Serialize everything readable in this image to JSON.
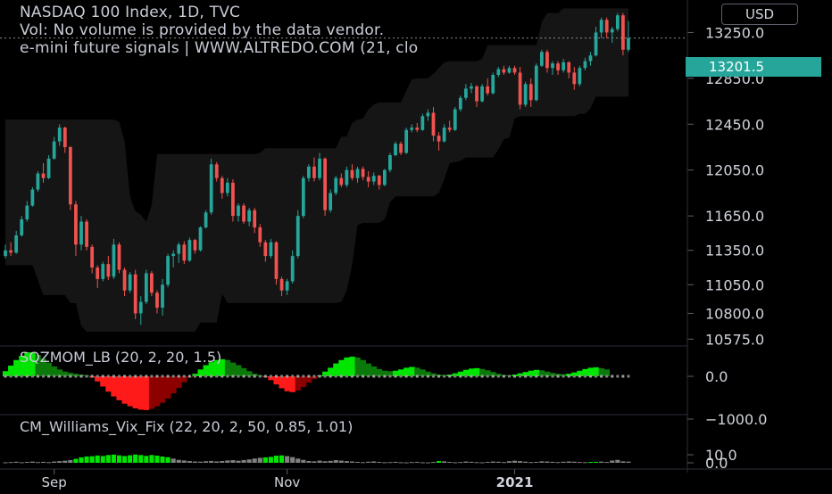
{
  "header": {
    "title": "NASDAQ 100 Index, 1D, TVC",
    "volume_note": "Vol: No volume is provided by the data vendor.",
    "signals_note": "e-mini future signals | WWW.ALTREDO.COM (21, clo"
  },
  "currency": "USD",
  "last_price": "13201.5",
  "indicators": {
    "sqzmom": "SQZMOM_LB (20, 2, 20, 1.5)",
    "vix": "CM_Williams_Vix_Fix (22, 20, 2, 50, 0.85, 1.01)"
  },
  "colors": {
    "up": "#26a69a",
    "down": "#ef5350",
    "bright_green": "#00e600",
    "dark_green": "#0b7a0b",
    "red": "#ff1a1a",
    "dark_red": "#8c0000",
    "gray": "#808080",
    "band": "#151515"
  },
  "chart_data": [
    {
      "type": "candlestick",
      "title": "NASDAQ 100 Index, 1D, TVC",
      "price_ticks": [
        "13250.0",
        "12850.0",
        "12450.0",
        "12050.0",
        "11650.0",
        "11350.0",
        "11050.0",
        "10800.0",
        "10575.0"
      ],
      "price_tick_values": [
        13250,
        12850,
        12450,
        12050,
        11650,
        11350,
        11050,
        10800,
        10575
      ],
      "x_ticks": [
        "Sep",
        "Nov",
        "2021"
      ],
      "x_tick_indices": [
        9,
        52,
        94
      ],
      "last_price": 13201.5,
      "candles": [
        {
          "o": 11300,
          "h": 11400,
          "l": 11280,
          "c": 11350
        },
        {
          "o": 11350,
          "h": 11420,
          "l": 11300,
          "c": 11330
        },
        {
          "o": 11330,
          "h": 11520,
          "l": 11320,
          "c": 11480
        },
        {
          "o": 11480,
          "h": 11650,
          "l": 11470,
          "c": 11620
        },
        {
          "o": 11620,
          "h": 11780,
          "l": 11600,
          "c": 11740
        },
        {
          "o": 11740,
          "h": 11900,
          "l": 11730,
          "c": 11880
        },
        {
          "o": 11880,
          "h": 12040,
          "l": 11860,
          "c": 12020
        },
        {
          "o": 12020,
          "h": 12110,
          "l": 11940,
          "c": 11980
        },
        {
          "o": 11980,
          "h": 12180,
          "l": 11970,
          "c": 12150
        },
        {
          "o": 12150,
          "h": 12340,
          "l": 12140,
          "c": 12300
        },
        {
          "o": 12300,
          "h": 12450,
          "l": 12260,
          "c": 12420
        },
        {
          "o": 12420,
          "h": 12430,
          "l": 12200,
          "c": 12250
        },
        {
          "o": 12250,
          "h": 12260,
          "l": 11700,
          "c": 11750
        },
        {
          "o": 11750,
          "h": 11780,
          "l": 11300,
          "c": 11400
        },
        {
          "o": 11400,
          "h": 11650,
          "l": 11350,
          "c": 11600
        },
        {
          "o": 11600,
          "h": 11620,
          "l": 11350,
          "c": 11380
        },
        {
          "o": 11380,
          "h": 11400,
          "l": 11150,
          "c": 11200
        },
        {
          "o": 11200,
          "h": 11220,
          "l": 11020,
          "c": 11100
        },
        {
          "o": 11100,
          "h": 11250,
          "l": 11080,
          "c": 11230
        },
        {
          "o": 11230,
          "h": 11300,
          "l": 11090,
          "c": 11120
        },
        {
          "o": 11120,
          "h": 11450,
          "l": 11100,
          "c": 11400
        },
        {
          "o": 11400,
          "h": 11420,
          "l": 11150,
          "c": 11180
        },
        {
          "o": 11180,
          "h": 11200,
          "l": 10950,
          "c": 11000
        },
        {
          "o": 11000,
          "h": 11160,
          "l": 10980,
          "c": 11140
        },
        {
          "o": 11140,
          "h": 11180,
          "l": 10750,
          "c": 10800
        },
        {
          "o": 10800,
          "h": 10950,
          "l": 10700,
          "c": 10900
        },
        {
          "o": 10900,
          "h": 11180,
          "l": 10880,
          "c": 11150
        },
        {
          "o": 11150,
          "h": 11170,
          "l": 10950,
          "c": 10980
        },
        {
          "o": 10980,
          "h": 11000,
          "l": 10800,
          "c": 10850
        },
        {
          "o": 10850,
          "h": 11100,
          "l": 10780,
          "c": 11050
        },
        {
          "o": 11050,
          "h": 11320,
          "l": 11030,
          "c": 11300
        },
        {
          "o": 11300,
          "h": 11350,
          "l": 11200,
          "c": 11320
        },
        {
          "o": 11320,
          "h": 11420,
          "l": 11240,
          "c": 11400
        },
        {
          "o": 11400,
          "h": 11430,
          "l": 11230,
          "c": 11260
        },
        {
          "o": 11260,
          "h": 11460,
          "l": 11250,
          "c": 11440
        },
        {
          "o": 11440,
          "h": 11450,
          "l": 11320,
          "c": 11350
        },
        {
          "o": 11350,
          "h": 11560,
          "l": 11340,
          "c": 11550
        },
        {
          "o": 11550,
          "h": 11700,
          "l": 11540,
          "c": 11680
        },
        {
          "o": 11680,
          "h": 12150,
          "l": 11660,
          "c": 12100
        },
        {
          "o": 12100,
          "h": 12120,
          "l": 11950,
          "c": 11980
        },
        {
          "o": 11980,
          "h": 12000,
          "l": 11800,
          "c": 11850
        },
        {
          "o": 11850,
          "h": 11980,
          "l": 11820,
          "c": 11940
        },
        {
          "o": 11940,
          "h": 11970,
          "l": 11600,
          "c": 11650
        },
        {
          "o": 11650,
          "h": 11760,
          "l": 11600,
          "c": 11740
        },
        {
          "o": 11740,
          "h": 11760,
          "l": 11580,
          "c": 11600
        },
        {
          "o": 11600,
          "h": 11720,
          "l": 11560,
          "c": 11700
        },
        {
          "o": 11700,
          "h": 11720,
          "l": 11500,
          "c": 11550
        },
        {
          "o": 11550,
          "h": 11580,
          "l": 11380,
          "c": 11420
        },
        {
          "o": 11420,
          "h": 11440,
          "l": 11250,
          "c": 11300
        },
        {
          "o": 11300,
          "h": 11450,
          "l": 11280,
          "c": 11420
        },
        {
          "o": 11420,
          "h": 11430,
          "l": 11050,
          "c": 11100
        },
        {
          "o": 11100,
          "h": 11120,
          "l": 10950,
          "c": 11000
        },
        {
          "o": 11000,
          "h": 11100,
          "l": 10960,
          "c": 11080
        },
        {
          "o": 11080,
          "h": 11350,
          "l": 11060,
          "c": 11300
        },
        {
          "o": 11300,
          "h": 11700,
          "l": 11280,
          "c": 11650
        },
        {
          "o": 11650,
          "h": 12000,
          "l": 11630,
          "c": 11980
        },
        {
          "o": 11980,
          "h": 12100,
          "l": 11950,
          "c": 12080
        },
        {
          "o": 12080,
          "h": 12160,
          "l": 11950,
          "c": 11980
        },
        {
          "o": 11980,
          "h": 12200,
          "l": 11960,
          "c": 12150
        },
        {
          "o": 12150,
          "h": 12160,
          "l": 11650,
          "c": 11700
        },
        {
          "o": 11700,
          "h": 11880,
          "l": 11680,
          "c": 11850
        },
        {
          "o": 11850,
          "h": 12000,
          "l": 11830,
          "c": 11980
        },
        {
          "o": 11980,
          "h": 12020,
          "l": 11900,
          "c": 11920
        },
        {
          "o": 11920,
          "h": 12080,
          "l": 11900,
          "c": 12050
        },
        {
          "o": 12050,
          "h": 12100,
          "l": 11960,
          "c": 11980
        },
        {
          "o": 11980,
          "h": 12080,
          "l": 11940,
          "c": 12060
        },
        {
          "o": 12060,
          "h": 12080,
          "l": 11960,
          "c": 11990
        },
        {
          "o": 11990,
          "h": 12040,
          "l": 11900,
          "c": 11950
        },
        {
          "o": 11950,
          "h": 12030,
          "l": 11920,
          "c": 12000
        },
        {
          "o": 12000,
          "h": 12010,
          "l": 11880,
          "c": 11920
        },
        {
          "o": 11920,
          "h": 12060,
          "l": 11910,
          "c": 12050
        },
        {
          "o": 12050,
          "h": 12200,
          "l": 12030,
          "c": 12180
        },
        {
          "o": 12180,
          "h": 12300,
          "l": 12170,
          "c": 12280
        },
        {
          "o": 12280,
          "h": 12300,
          "l": 12180,
          "c": 12200
        },
        {
          "o": 12200,
          "h": 12420,
          "l": 12190,
          "c": 12400
        },
        {
          "o": 12400,
          "h": 12450,
          "l": 12380,
          "c": 12420
        },
        {
          "o": 12420,
          "h": 12460,
          "l": 12380,
          "c": 12400
        },
        {
          "o": 12400,
          "h": 12540,
          "l": 12390,
          "c": 12520
        },
        {
          "o": 12520,
          "h": 12580,
          "l": 12480,
          "c": 12550
        },
        {
          "o": 12550,
          "h": 12600,
          "l": 12300,
          "c": 12350
        },
        {
          "o": 12350,
          "h": 12380,
          "l": 12220,
          "c": 12300
        },
        {
          "o": 12300,
          "h": 12450,
          "l": 12290,
          "c": 12420
        },
        {
          "o": 12420,
          "h": 12480,
          "l": 12380,
          "c": 12400
        },
        {
          "o": 12400,
          "h": 12600,
          "l": 12390,
          "c": 12580
        },
        {
          "o": 12580,
          "h": 12700,
          "l": 12560,
          "c": 12680
        },
        {
          "o": 12680,
          "h": 12800,
          "l": 12660,
          "c": 12760
        },
        {
          "o": 12760,
          "h": 12810,
          "l": 12720,
          "c": 12780
        },
        {
          "o": 12780,
          "h": 12790,
          "l": 12600,
          "c": 12650
        },
        {
          "o": 12650,
          "h": 12800,
          "l": 12640,
          "c": 12780
        },
        {
          "o": 12780,
          "h": 12850,
          "l": 12700,
          "c": 12720
        },
        {
          "o": 12720,
          "h": 12900,
          "l": 12710,
          "c": 12880
        },
        {
          "o": 12880,
          "h": 12950,
          "l": 12860,
          "c": 12930
        },
        {
          "o": 12930,
          "h": 12960,
          "l": 12880,
          "c": 12900
        },
        {
          "o": 12900,
          "h": 12960,
          "l": 12890,
          "c": 12940
        },
        {
          "o": 12940,
          "h": 12960,
          "l": 12880,
          "c": 12900
        },
        {
          "o": 12900,
          "h": 12950,
          "l": 12580,
          "c": 12620
        },
        {
          "o": 12620,
          "h": 12820,
          "l": 12600,
          "c": 12800
        },
        {
          "o": 12800,
          "h": 12850,
          "l": 12600,
          "c": 12660
        },
        {
          "o": 12660,
          "h": 12980,
          "l": 12650,
          "c": 12960
        },
        {
          "o": 12960,
          "h": 13100,
          "l": 12950,
          "c": 13080
        },
        {
          "o": 13080,
          "h": 13100,
          "l": 12900,
          "c": 12940
        },
        {
          "o": 12940,
          "h": 13000,
          "l": 12880,
          "c": 12980
        },
        {
          "o": 12980,
          "h": 13000,
          "l": 12880,
          "c": 12920
        },
        {
          "o": 12920,
          "h": 13020,
          "l": 12900,
          "c": 12990
        },
        {
          "o": 12990,
          "h": 13000,
          "l": 12850,
          "c": 12900
        },
        {
          "o": 12900,
          "h": 12950,
          "l": 12750,
          "c": 12800
        },
        {
          "o": 12800,
          "h": 12960,
          "l": 12780,
          "c": 12940
        },
        {
          "o": 12940,
          "h": 13030,
          "l": 12920,
          "c": 13000
        },
        {
          "o": 13000,
          "h": 13080,
          "l": 12960,
          "c": 13050
        },
        {
          "o": 13050,
          "h": 13300,
          "l": 13040,
          "c": 13250
        },
        {
          "o": 13250,
          "h": 13380,
          "l": 13200,
          "c": 13360
        },
        {
          "o": 13360,
          "h": 13380,
          "l": 13200,
          "c": 13250
        },
        {
          "o": 13250,
          "h": 13300,
          "l": 13160,
          "c": 13280
        },
        {
          "o": 13280,
          "h": 13420,
          "l": 13260,
          "c": 13400
        },
        {
          "o": 13400,
          "h": 13420,
          "l": 13050,
          "c": 13100
        },
        {
          "o": 13100,
          "h": 13350,
          "l": 13080,
          "c": 13201.5
        }
      ]
    },
    {
      "type": "bar",
      "title": "SQZMOM_LB (20, 2, 20, 1.5)",
      "y_ticks": [
        "0.0",
        "−1000.0"
      ],
      "y_tick_values": [
        0,
        -1000
      ],
      "values": [
        120,
        250,
        380,
        480,
        560,
        560,
        500,
        410,
        320,
        230,
        160,
        110,
        80,
        60,
        40,
        20,
        -30,
        -120,
        -240,
        -360,
        -470,
        -560,
        -640,
        -700,
        -750,
        -780,
        -790,
        -760,
        -700,
        -620,
        -520,
        -400,
        -270,
        -140,
        -30,
        60,
        160,
        260,
        330,
        380,
        400,
        380,
        320,
        260,
        190,
        120,
        60,
        20,
        -20,
        -90,
        -190,
        -280,
        -350,
        -370,
        -330,
        -250,
        -150,
        -60,
        20,
        110,
        200,
        300,
        380,
        440,
        460,
        440,
        380,
        300,
        230,
        170,
        130,
        120,
        130,
        160,
        200,
        220,
        200,
        160,
        110,
        70,
        40,
        30,
        40,
        70,
        110,
        150,
        180,
        190,
        170,
        140,
        100,
        60,
        30,
        20,
        40,
        70,
        100,
        130,
        150,
        140,
        110,
        80,
        60,
        50,
        60,
        90,
        130,
        170,
        200,
        210,
        190,
        160
      ]
    },
    {
      "type": "bar",
      "title": "CM_Williams_Vix_Fix (22, 20, 2, 50, 0.85, 1.01)",
      "y_ticks": [
        "10.0",
        "0.0"
      ],
      "y_tick_values": [
        10,
        0
      ],
      "values": [
        0.6,
        0.9,
        1.3,
        0.7,
        1.1,
        1.5,
        0.9,
        1.2,
        0.8,
        1.6,
        2.1,
        2.6,
        3.4,
        4.9,
        6.8,
        7.9,
        8.2,
        9.1,
        8.4,
        9.7,
        10.2,
        9.3,
        8.4,
        9.4,
        10.3,
        9.6,
        8.6,
        9.7,
        8.9,
        7.8,
        6.9,
        5.2,
        3.6,
        2.9,
        2.2,
        1.6,
        1.4,
        1.9,
        2.3,
        1.7,
        2.2,
        2.9,
        3.3,
        2.6,
        3.4,
        4.2,
        5.3,
        6.2,
        6.8,
        7.4,
        8.9,
        9.2,
        8.4,
        7.1,
        5.2,
        3.6,
        2.2,
        1.8,
        2.7,
        1.9,
        2.4,
        3.3,
        2.7,
        2.1,
        1.6,
        1.1,
        0.8,
        1.3,
        1.7,
        1.1,
        0.7,
        0.9,
        1.2,
        0.7,
        0.5,
        0.9,
        1.1,
        0.6,
        0.5,
        1.0,
        2.2,
        1.8,
        1.1,
        0.7,
        0.9,
        1.6,
        1.2,
        0.8,
        0.6,
        1.1,
        1.6,
        1.3,
        0.9,
        2.0,
        2.6,
        2.1,
        1.4,
        0.9,
        1.1,
        1.8,
        1.6,
        1.2,
        0.9,
        1.3,
        1.7,
        1.4,
        1.0,
        0.8,
        1.1,
        1.2,
        1.5,
        1.0,
        2.8,
        3.6,
        1.8,
        1.5
      ],
      "highlighted": [
        13,
        14,
        15,
        16,
        17,
        18,
        19,
        20,
        21,
        22,
        23,
        24,
        25,
        26,
        27,
        28,
        29,
        30,
        48,
        49,
        50,
        51,
        51,
        80,
        108,
        109
      ]
    }
  ]
}
